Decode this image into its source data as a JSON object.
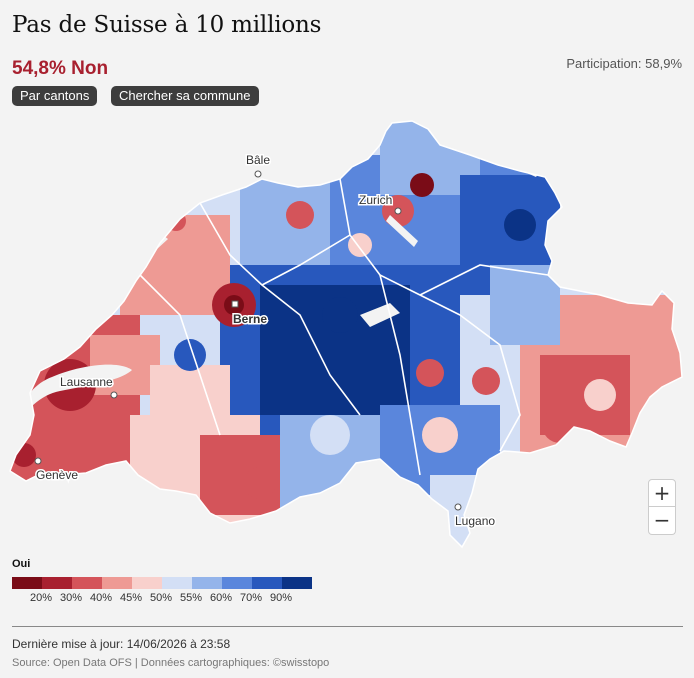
{
  "title": "Pas de Suisse à 10 millions",
  "result": {
    "text": "54,8% Non",
    "color": "#a8202f"
  },
  "participation": "Participation: 58,9%",
  "buttons": {
    "cantons": "Par cantons",
    "commune": "Chercher sa commune"
  },
  "map": {
    "cities": [
      {
        "name": "Bâle",
        "capital": false
      },
      {
        "name": "Zurich",
        "capital": false
      },
      {
        "name": "Berne",
        "capital": true
      },
      {
        "name": "Lausanne",
        "capital": false
      },
      {
        "name": "Genève",
        "capital": false
      },
      {
        "name": "Lugano",
        "capital": false
      }
    ],
    "zoom": {
      "in": "+",
      "out": "−"
    }
  },
  "legend": {
    "title": "Oui",
    "colors": [
      "#7a0c17",
      "#a8202f",
      "#d4545a",
      "#ee9a94",
      "#f8d0cc",
      "#d3dff5",
      "#94b4ea",
      "#5a86dc",
      "#2858bd",
      "#0b3386"
    ],
    "ticks": [
      "20%",
      "30%",
      "40%",
      "45%",
      "50%",
      "55%",
      "60%",
      "70%",
      "90%"
    ]
  },
  "footer": {
    "updated": "Dernière mise à jour: 14/06/2026 à 23:58",
    "source": "Source: Open Data OFS | Données cartographiques: ©swisstopo"
  }
}
